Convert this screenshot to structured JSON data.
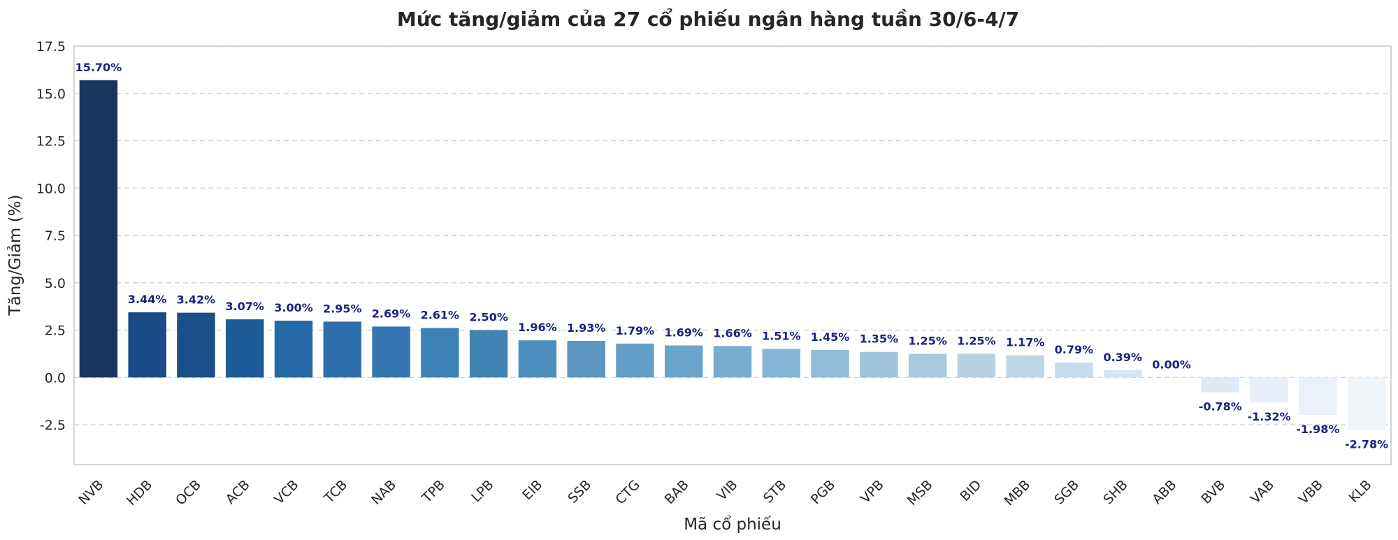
{
  "chart_data": {
    "type": "bar",
    "title": "Mức tăng/giảm của 27 cổ phiếu ngân hàng tuần 30/6-4/7",
    "xlabel": "Mã cổ phiếu",
    "ylabel": "Tăng/Giảm (%)",
    "ylim": [
      -4.6,
      17.5
    ],
    "yticks": [
      -2.5,
      0.0,
      2.5,
      5.0,
      7.5,
      10.0,
      12.5,
      15.0,
      17.5
    ],
    "ytick_labels": [
      "-2.5",
      "0.0",
      "2.5",
      "5.0",
      "7.5",
      "10.0",
      "12.5",
      "15.0",
      "17.5"
    ],
    "grid": "horizontal-dashed",
    "categories": [
      "NVB",
      "HDB",
      "OCB",
      "ACB",
      "VCB",
      "TCB",
      "NAB",
      "TPB",
      "LPB",
      "EIB",
      "SSB",
      "CTG",
      "BAB",
      "VIB",
      "STB",
      "PGB",
      "VPB",
      "MSB",
      "BID",
      "MBB",
      "SGB",
      "SHB",
      "ABB",
      "BVB",
      "VAB",
      "VBB",
      "KLB"
    ],
    "values": [
      15.7,
      3.44,
      3.42,
      3.07,
      3.0,
      2.95,
      2.69,
      2.61,
      2.5,
      1.96,
      1.93,
      1.79,
      1.69,
      1.66,
      1.51,
      1.45,
      1.35,
      1.25,
      1.25,
      1.17,
      0.79,
      0.39,
      0.0,
      -0.78,
      -1.32,
      -1.98,
      -2.78
    ],
    "value_labels": [
      "15.70%",
      "3.44%",
      "3.42%",
      "3.07%",
      "3.00%",
      "2.95%",
      "2.69%",
      "2.61%",
      "2.50%",
      "1.96%",
      "1.93%",
      "1.79%",
      "1.69%",
      "1.66%",
      "1.51%",
      "1.45%",
      "1.35%",
      "1.25%",
      "1.25%",
      "1.17%",
      "0.79%",
      "0.39%",
      "0.00%",
      "-0.78%",
      "-1.32%",
      "-1.98%",
      "-2.78%"
    ],
    "colors": [
      "#16365f",
      "#184a87",
      "#1b4f8a",
      "#1f5b99",
      "#256aa7",
      "#2f6ead",
      "#3576b2",
      "#3e83b8",
      "#4384b6",
      "#4d8fbe",
      "#5b95c0",
      "#639fc8",
      "#6aa3cb",
      "#79add0",
      "#84b5d4",
      "#92bdd9",
      "#a0c4da",
      "#a8c9de",
      "#b6d1e3",
      "#bdd6e6",
      "#c8dceb",
      "#d6e5f1",
      "#dde9f4",
      "#dee9f4",
      "#e6eef7",
      "#eaf1f8",
      "#f0f5fa"
    ],
    "value_label_color": "#1a237e"
  }
}
